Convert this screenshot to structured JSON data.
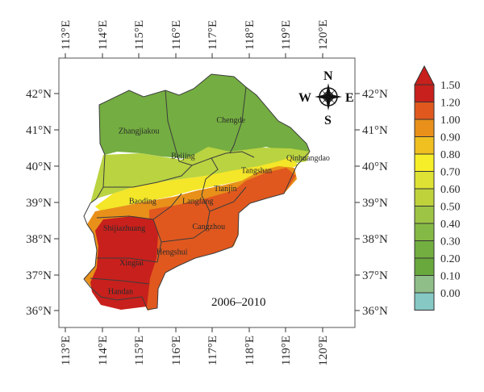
{
  "map": {
    "period": "2006–2010",
    "lon_ticks": [
      "113°E",
      "114°E",
      "115°E",
      "116°E",
      "117°E",
      "118°E",
      "119°E",
      "120°E"
    ],
    "lat_ticks": [
      "42°N",
      "41°N",
      "40°N",
      "39°N",
      "38°N",
      "37°N",
      "36°N"
    ],
    "compass": {
      "n": "N",
      "s": "S",
      "e": "E",
      "w": "W"
    },
    "colorbar": {
      "labels": [
        "1.50",
        "1.20",
        "1.00",
        "0.90",
        "0.80",
        "0.70",
        "0.60",
        "0.50",
        "0.40",
        "0.30",
        "0.20",
        "0.10",
        "0.00"
      ],
      "colors": [
        "#c8201c",
        "#e0581e",
        "#e8901a",
        "#f0bf20",
        "#f6ee28",
        "#dde234",
        "#bfd23c",
        "#9ec445",
        "#85b945",
        "#72ae40",
        "#68a83c",
        "#8fbe88",
        "#86c8c4"
      ]
    },
    "cities": [
      {
        "name": "Zhangjiakou",
        "lon": 115.0,
        "lat": 40.9
      },
      {
        "name": "Chengde",
        "lon": 117.5,
        "lat": 41.2
      },
      {
        "name": "Beijing",
        "lon": 116.2,
        "lat": 40.2
      },
      {
        "name": "Qinhuangdao",
        "lon": 119.6,
        "lat": 40.15
      },
      {
        "name": "Tangshan",
        "lon": 118.2,
        "lat": 39.8
      },
      {
        "name": "Tianjin",
        "lon": 117.35,
        "lat": 39.3
      },
      {
        "name": "Baoding",
        "lon": 115.1,
        "lat": 38.95
      },
      {
        "name": "Langfang",
        "lon": 116.6,
        "lat": 38.95
      },
      {
        "name": "Cangzhou",
        "lon": 116.9,
        "lat": 38.25
      },
      {
        "name": "Shijiazhuang",
        "lon": 114.6,
        "lat": 38.2
      },
      {
        "name": "Hengshui",
        "lon": 115.9,
        "lat": 37.55
      },
      {
        "name": "Xingtai",
        "lon": 114.8,
        "lat": 37.25
      },
      {
        "name": "Handan",
        "lon": 114.5,
        "lat": 36.45
      }
    ]
  }
}
